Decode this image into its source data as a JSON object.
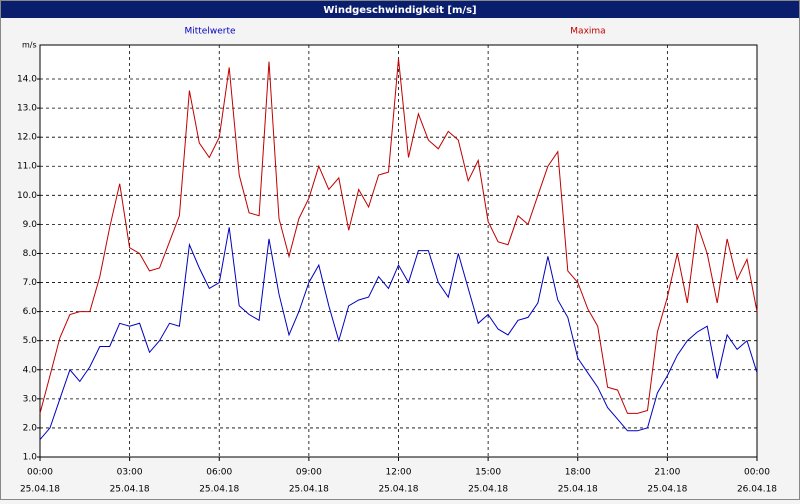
{
  "chart_data": {
    "type": "line",
    "title": "Windgeschwindigkeit [m/s]",
    "y_unit": "m/s",
    "x": [
      0,
      20,
      40,
      60,
      80,
      100,
      120,
      140,
      160,
      180,
      200,
      220,
      240,
      260,
      280,
      300,
      320,
      340,
      360,
      380,
      400,
      420,
      440,
      460,
      480,
      500,
      520,
      540,
      560,
      580,
      600,
      620,
      640,
      660,
      680,
      700,
      720,
      740,
      760,
      780,
      800,
      820,
      840,
      860,
      880,
      900,
      920,
      940,
      960,
      980,
      1000,
      1020,
      1040,
      1060,
      1080,
      1100,
      1120,
      1140,
      1160,
      1180,
      1200,
      1220,
      1240,
      1260,
      1280,
      1300,
      1320,
      1340,
      1360,
      1380,
      1400,
      1420,
      1440
    ],
    "series": [
      {
        "name": "Mittelwerte",
        "color": "#0000c0",
        "values": [
          1.6,
          2.0,
          3.0,
          4.0,
          3.6,
          4.1,
          4.8,
          4.8,
          5.6,
          5.5,
          5.6,
          4.6,
          5.0,
          5.6,
          5.5,
          8.3,
          7.5,
          6.8,
          7.0,
          8.9,
          6.2,
          5.9,
          5.7,
          8.5,
          6.6,
          5.2,
          6.0,
          7.0,
          7.6,
          6.2,
          5.0,
          6.2,
          6.4,
          6.5,
          7.2,
          6.8,
          7.6,
          7.0,
          8.1,
          8.1,
          7.0,
          6.5,
          8.0,
          6.8,
          5.6,
          5.9,
          5.4,
          5.2,
          5.7,
          5.8,
          6.3,
          7.9,
          6.4,
          5.8,
          4.4,
          3.9,
          3.4,
          2.7,
          2.3,
          1.9,
          1.9,
          2.0,
          3.2,
          3.8,
          4.5,
          5.0,
          5.3,
          5.5,
          3.7,
          5.2,
          4.7,
          5.0,
          3.9
        ]
      },
      {
        "name": "Maxima",
        "color": "#c00000",
        "values": [
          2.5,
          3.8,
          5.1,
          5.9,
          6.0,
          6.0,
          7.2,
          8.9,
          10.4,
          8.2,
          8.0,
          7.4,
          7.5,
          8.4,
          9.3,
          13.6,
          11.8,
          11.3,
          12.0,
          14.4,
          10.7,
          9.4,
          9.3,
          14.6,
          9.2,
          7.9,
          9.2,
          9.9,
          11.0,
          10.2,
          10.6,
          8.8,
          10.2,
          9.6,
          10.7,
          10.8,
          14.7,
          11.3,
          12.8,
          11.9,
          11.6,
          12.2,
          11.9,
          10.5,
          11.2,
          9.1,
          8.4,
          8.3,
          9.3,
          9.0,
          10.0,
          11.0,
          11.5,
          7.4,
          7.0,
          6.1,
          5.5,
          3.4,
          3.3,
          2.5,
          2.5,
          2.6,
          5.3,
          6.5,
          8.0,
          6.3,
          9.0,
          8.0,
          6.3,
          8.5,
          7.1,
          7.8,
          6.0
        ]
      }
    ],
    "xlim": [
      0,
      1440
    ],
    "xticks": [
      {
        "value": 0,
        "label": "00:00",
        "date": "25.04.18"
      },
      {
        "value": 180,
        "label": "03:00",
        "date": "25.04.18"
      },
      {
        "value": 360,
        "label": "06:00",
        "date": "25.04.18"
      },
      {
        "value": 540,
        "label": "09:00",
        "date": "25.04.18"
      },
      {
        "value": 720,
        "label": "12:00",
        "date": "25.04.18"
      },
      {
        "value": 900,
        "label": "15:00",
        "date": "25.04.18"
      },
      {
        "value": 1080,
        "label": "18:00",
        "date": "25.04.18"
      },
      {
        "value": 1260,
        "label": "21:00",
        "date": "25.04.18"
      },
      {
        "value": 1440,
        "label": "00:00",
        "date": "26.04.18"
      }
    ],
    "ylim": [
      1,
      15.17
    ],
    "yticks": [
      {
        "value": 1,
        "label": "1.0"
      },
      {
        "value": 2,
        "label": "2.0"
      },
      {
        "value": 3,
        "label": "3.0"
      },
      {
        "value": 4,
        "label": "4.0"
      },
      {
        "value": 5,
        "label": "5.0"
      },
      {
        "value": 6,
        "label": "6.0"
      },
      {
        "value": 7,
        "label": "7.0"
      },
      {
        "value": 8,
        "label": "8.0"
      },
      {
        "value": 9,
        "label": "9.0"
      },
      {
        "value": 10,
        "label": "10.0"
      },
      {
        "value": 11,
        "label": "11.0"
      },
      {
        "value": 12,
        "label": "12.0"
      },
      {
        "value": 13,
        "label": "13.0"
      },
      {
        "value": 14,
        "label": "14.0"
      }
    ],
    "grid": true
  }
}
